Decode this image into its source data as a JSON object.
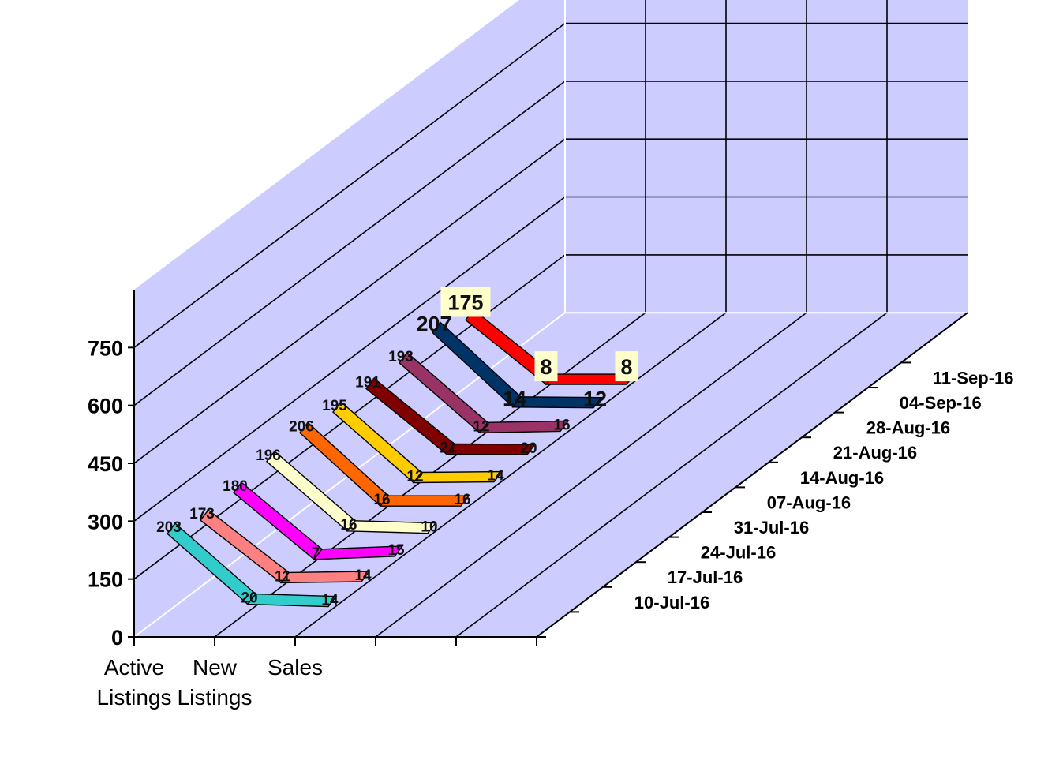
{
  "chart_data": {
    "type": "line",
    "title": "",
    "categories": [
      "Active Listings",
      "New Listings",
      "Sales"
    ],
    "category_label_lines": [
      [
        "Active",
        "Listings"
      ],
      [
        "New",
        "Listings"
      ],
      [
        "Sales"
      ]
    ],
    "y_ticks": [
      "0",
      "150",
      "300",
      "450",
      "600",
      "750"
    ],
    "ylim": [
      0,
      900
    ],
    "grid": true,
    "series": [
      {
        "name": "10-Jul-16",
        "values": [
          203,
          20,
          14
        ],
        "color": "#33cccc"
      },
      {
        "name": "17-Jul-16",
        "values": [
          173,
          11,
          14
        ],
        "color": "#ff8080"
      },
      {
        "name": "24-Jul-16",
        "values": [
          180,
          7,
          15
        ],
        "color": "#ff00ff"
      },
      {
        "name": "31-Jul-16",
        "values": [
          196,
          16,
          10
        ],
        "color": "#ffffcc"
      },
      {
        "name": "07-Aug-16",
        "values": [
          206,
          16,
          16
        ],
        "color": "#ff6600"
      },
      {
        "name": "14-Aug-16",
        "values": [
          195,
          12,
          14
        ],
        "color": "#ffcc00"
      },
      {
        "name": "21-Aug-16",
        "values": [
          191,
          21,
          20
        ],
        "color": "#800000"
      },
      {
        "name": "28-Aug-16",
        "values": [
          193,
          12,
          16
        ],
        "color": "#993366"
      },
      {
        "name": "04-Sep-16",
        "values": [
          207,
          14,
          12
        ],
        "color": "#003366"
      },
      {
        "name": "11-Sep-16",
        "values": [
          175,
          8,
          8
        ],
        "color": "#ff0000"
      }
    ]
  }
}
